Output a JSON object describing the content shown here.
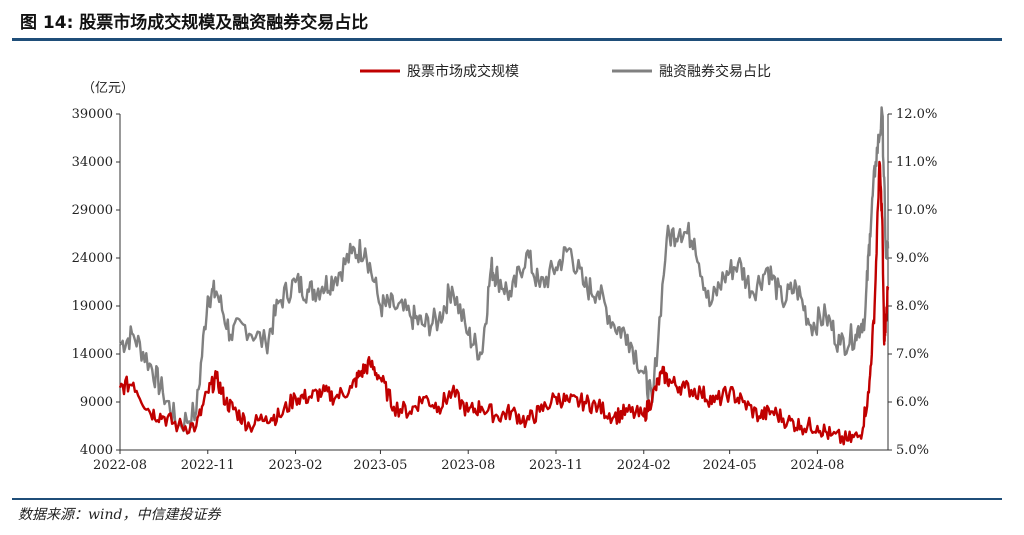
{
  "figure": {
    "title": "图 14: 股票市场成交规模及融资融券交易占比",
    "source": "数据来源：wind，中信建投证券"
  },
  "chart_data": {
    "type": "line",
    "left_unit": "（亿元）",
    "left_axis": {
      "ylim": [
        4000,
        39000
      ],
      "ticks": [
        4000,
        9000,
        14000,
        19000,
        24000,
        29000,
        34000,
        39000
      ]
    },
    "right_axis": {
      "ylim": [
        5.0,
        12.0
      ],
      "ticks": [
        "5.0%",
        "6.0%",
        "7.0%",
        "8.0%",
        "9.0%",
        "10.0%",
        "11.0%",
        "12.0%"
      ]
    },
    "x_axis": {
      "range": [
        "2022-08",
        "2024-10-14"
      ],
      "ticks": [
        "2022-08",
        "2022-11",
        "2023-02",
        "2023-05",
        "2023-08",
        "2023-11",
        "2024-02",
        "2024-05",
        "2024-08"
      ]
    },
    "legend_position": "top-center",
    "series": [
      {
        "name": "股票市场成交规模",
        "axis": "left",
        "color": "#c00000",
        "x": [
          "2022-08-01",
          "2022-08-15",
          "2022-09-01",
          "2022-09-15",
          "2022-10-01",
          "2022-10-20",
          "2022-11-01",
          "2022-11-10",
          "2022-11-20",
          "2022-12-01",
          "2022-12-15",
          "2023-01-01",
          "2023-01-15",
          "2023-02-01",
          "2023-02-15",
          "2023-03-01",
          "2023-03-15",
          "2023-04-01",
          "2023-04-10",
          "2023-04-20",
          "2023-05-01",
          "2023-05-15",
          "2023-06-01",
          "2023-06-15",
          "2023-07-01",
          "2023-07-15",
          "2023-08-01",
          "2023-08-15",
          "2023-09-01",
          "2023-09-15",
          "2023-10-01",
          "2023-10-15",
          "2023-11-01",
          "2023-11-15",
          "2023-12-01",
          "2023-12-15",
          "2024-01-01",
          "2024-01-15",
          "2024-02-01",
          "2024-02-10",
          "2024-02-20",
          "2024-03-01",
          "2024-03-15",
          "2024-04-01",
          "2024-04-15",
          "2024-05-01",
          "2024-05-15",
          "2024-06-01",
          "2024-06-15",
          "2024-07-01",
          "2024-07-15",
          "2024-08-01",
          "2024-08-15",
          "2024-09-01",
          "2024-09-15",
          "2024-09-24",
          "2024-09-30",
          "2024-10-05",
          "2024-10-08",
          "2024-10-10",
          "2024-10-12",
          "2024-10-14"
        ],
        "values": [
          10500,
          11000,
          8000,
          7500,
          6500,
          6500,
          10000,
          11500,
          9000,
          8000,
          6500,
          7500,
          7500,
          9500,
          9500,
          10000,
          9500,
          10500,
          12000,
          13000,
          11500,
          8500,
          8000,
          9500,
          8500,
          10000,
          8000,
          8500,
          7500,
          8000,
          7000,
          8000,
          9500,
          9000,
          9000,
          8500,
          7500,
          8000,
          7500,
          9500,
          12000,
          11000,
          10500,
          10000,
          9000,
          10000,
          9000,
          7500,
          8000,
          7000,
          6500,
          6500,
          5500,
          5000,
          5500,
          10000,
          19000,
          34000,
          28000,
          15000,
          18000,
          21000
        ]
      },
      {
        "name": "融资融券交易占比",
        "axis": "right",
        "color": "#808080",
        "x": [
          "2022-08-01",
          "2022-08-15",
          "2022-09-01",
          "2022-09-15",
          "2022-10-01",
          "2022-10-20",
          "2022-11-01",
          "2022-11-10",
          "2022-11-25",
          "2022-12-10",
          "2023-01-01",
          "2023-01-15",
          "2023-02-01",
          "2023-02-15",
          "2023-03-01",
          "2023-03-15",
          "2023-04-01",
          "2023-04-15",
          "2023-05-01",
          "2023-05-15",
          "2023-06-01",
          "2023-06-15",
          "2023-07-01",
          "2023-07-15",
          "2023-08-01",
          "2023-08-15",
          "2023-08-25",
          "2023-09-01",
          "2023-09-15",
          "2023-10-01",
          "2023-10-15",
          "2023-11-01",
          "2023-11-15",
          "2023-12-01",
          "2023-12-15",
          "2024-01-01",
          "2024-01-15",
          "2024-02-01",
          "2024-02-10",
          "2024-02-25",
          "2024-03-10",
          "2024-03-25",
          "2024-04-10",
          "2024-04-25",
          "2024-05-10",
          "2024-05-25",
          "2024-06-10",
          "2024-06-25",
          "2024-07-10",
          "2024-07-25",
          "2024-08-10",
          "2024-08-25",
          "2024-09-10",
          "2024-09-20",
          "2024-09-25",
          "2024-10-01",
          "2024-10-08",
          "2024-10-12",
          "2024-10-14"
        ],
        "values": [
          7.2,
          7.4,
          6.8,
          6.2,
          5.5,
          5.8,
          8.2,
          8.3,
          7.4,
          7.6,
          7.2,
          8.1,
          8.5,
          8.3,
          8.4,
          8.6,
          9.1,
          9.2,
          8.0,
          8.0,
          7.8,
          7.6,
          7.7,
          8.4,
          7.4,
          7.0,
          8.8,
          8.6,
          8.2,
          9.1,
          8.4,
          8.8,
          9.2,
          8.4,
          8.3,
          7.6,
          7.4,
          6.6,
          6.0,
          9.4,
          9.6,
          9.4,
          8.0,
          8.6,
          8.9,
          8.3,
          8.8,
          8.1,
          8.4,
          7.6,
          7.8,
          7.2,
          7.4,
          7.8,
          9.5,
          11.0,
          12.0,
          9.0,
          9.2
        ]
      }
    ]
  }
}
